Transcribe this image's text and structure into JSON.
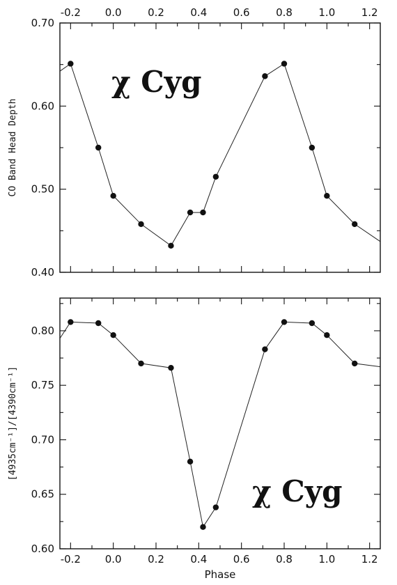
{
  "chart_data": [
    {
      "type": "line",
      "title": "",
      "annotation": "χ Cyg",
      "xlabel": "",
      "ylabel": "CO Band Head Depth",
      "xlim": [
        -0.25,
        1.25
      ],
      "ylim": [
        0.4,
        0.7
      ],
      "x_ticks": [
        "-0.2",
        "0.0",
        "0.2",
        "0.4",
        "0.6",
        "0.8",
        "1.0",
        "1.2"
      ],
      "x_tick_values": [
        -0.2,
        0.0,
        0.2,
        0.4,
        0.6,
        0.8,
        1.0,
        1.2
      ],
      "y_ticks": [
        "0.40",
        "0.50",
        "0.60",
        "0.70"
      ],
      "y_tick_values": [
        0.4,
        0.5,
        0.6,
        0.7
      ],
      "grid": false,
      "line_extends_to_edges": true,
      "series": [
        {
          "x": [
            -0.2,
            -0.07,
            0.0,
            0.13,
            0.27,
            0.36,
            0.42,
            0.48,
            0.71,
            0.8,
            0.93,
            1.0,
            1.13
          ],
          "y": [
            0.651,
            0.55,
            0.492,
            0.458,
            0.432,
            0.472,
            0.472,
            0.515,
            0.636,
            0.651,
            0.55,
            0.492,
            0.458
          ]
        }
      ],
      "edge_points": [
        [
          -0.25,
          0.642
        ],
        [
          1.25,
          0.437
        ]
      ]
    },
    {
      "type": "line",
      "title": "",
      "annotation": "χ Cyg",
      "xlabel": "Phase",
      "ylabel": "[4935cm⁻¹]/[4390cm⁻¹]",
      "xlim": [
        -0.25,
        1.25
      ],
      "ylim": [
        0.6,
        0.83
      ],
      "x_ticks": [
        "-0.2",
        "0.0",
        "0.2",
        "0.4",
        "0.6",
        "0.8",
        "1.0",
        "1.2"
      ],
      "x_tick_values": [
        -0.2,
        0.0,
        0.2,
        0.4,
        0.6,
        0.8,
        1.0,
        1.2
      ],
      "y_ticks": [
        "0.60",
        "0.65",
        "0.70",
        "0.75",
        "0.80"
      ],
      "y_tick_values": [
        0.6,
        0.65,
        0.7,
        0.75,
        0.8
      ],
      "grid": false,
      "line_extends_to_edges": true,
      "series": [
        {
          "x": [
            -0.2,
            -0.07,
            0.0,
            0.13,
            0.27,
            0.36,
            0.42,
            0.48,
            0.71,
            0.8,
            0.93,
            1.0,
            1.13
          ],
          "y": [
            0.808,
            0.807,
            0.796,
            0.77,
            0.766,
            0.68,
            0.62,
            0.638,
            0.783,
            0.808,
            0.807,
            0.796,
            0.77
          ]
        }
      ],
      "edge_points": [
        [
          -0.25,
          0.793
        ],
        [
          1.25,
          0.767
        ]
      ]
    }
  ]
}
